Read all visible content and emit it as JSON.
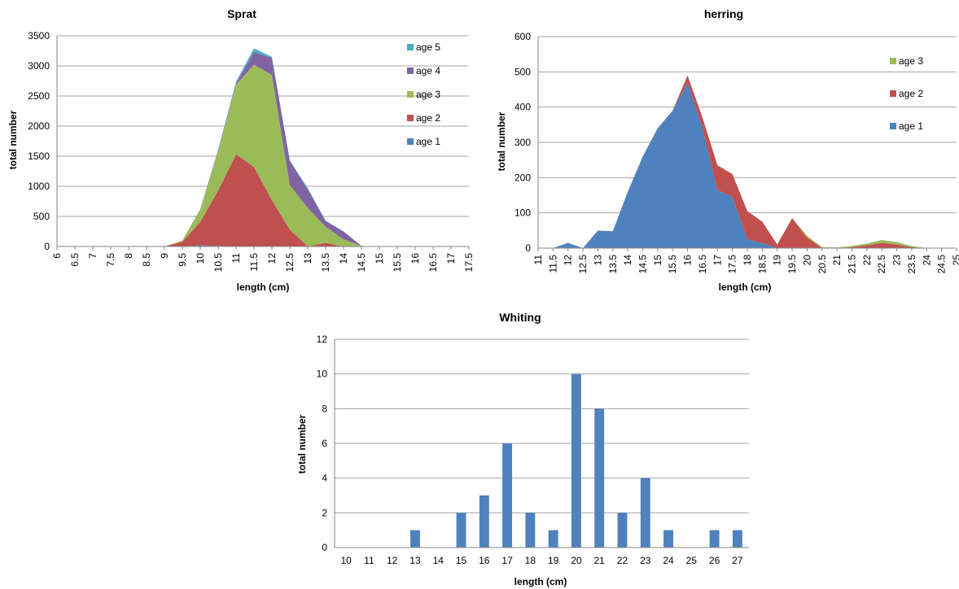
{
  "chart_data": [
    {
      "id": "sprat",
      "type": "area",
      "stacked": true,
      "title": "Sprat",
      "xlabel": "length (cm)",
      "ylabel": "total number",
      "ylim": [
        0,
        3500
      ],
      "yticks": [
        0,
        500,
        1000,
        1500,
        2000,
        2500,
        3000,
        3500
      ],
      "grid": true,
      "legend_position": "right",
      "x": [
        6,
        6.5,
        7,
        7.5,
        8,
        8.5,
        9,
        9.5,
        10,
        10.5,
        11,
        11.5,
        12,
        12.5,
        13,
        13.5,
        14,
        14.5,
        15,
        15.5,
        16,
        16.5,
        17,
        17.5
      ],
      "x_tick_labels": [
        "6",
        "6.5",
        "7",
        "7.5",
        "8",
        "8.5",
        "9",
        "9.5",
        "10",
        "10.5",
        "11",
        "11.5",
        "12",
        "12.5",
        "13",
        "13.5",
        "14",
        "14.5",
        "15",
        "15.5",
        "16",
        "16.5",
        "17",
        "17.5"
      ],
      "series": [
        {
          "name": "age 1",
          "color": "#4F81BD",
          "values": [
            0,
            0,
            0,
            0,
            0,
            0,
            0,
            0,
            20,
            10,
            0,
            0,
            0,
            0,
            0,
            0,
            0,
            0,
            0,
            0,
            0,
            0,
            0,
            0
          ]
        },
        {
          "name": "age 2",
          "color": "#C0504D",
          "values": [
            0,
            0,
            0,
            0,
            0,
            0,
            0,
            80,
            390,
            920,
            1530,
            1320,
            770,
            280,
            0,
            60,
            0,
            0,
            0,
            0,
            0,
            0,
            0,
            0
          ]
        },
        {
          "name": "age 3",
          "color": "#9BBB59",
          "values": [
            0,
            0,
            0,
            0,
            0,
            0,
            0,
            20,
            200,
            650,
            1160,
            1700,
            2080,
            740,
            640,
            270,
            120,
            10,
            0,
            0,
            0,
            0,
            0,
            0
          ]
        },
        {
          "name": "age 4",
          "color": "#8064A2",
          "values": [
            0,
            0,
            0,
            0,
            0,
            0,
            0,
            0,
            10,
            20,
            20,
            210,
            280,
            400,
            310,
            90,
            130,
            0,
            0,
            0,
            0,
            0,
            0,
            0
          ]
        },
        {
          "name": "age 5",
          "color": "#4BACC6",
          "values": [
            0,
            0,
            0,
            0,
            0,
            0,
            0,
            0,
            0,
            10,
            30,
            60,
            20,
            10,
            20,
            10,
            0,
            0,
            0,
            0,
            0,
            0,
            0,
            0
          ]
        }
      ]
    },
    {
      "id": "herring",
      "type": "area",
      "stacked": true,
      "title": "herring",
      "xlabel": "length (cm)",
      "ylabel": "total number",
      "ylim": [
        0,
        600
      ],
      "yticks": [
        0,
        100,
        200,
        300,
        400,
        500,
        600
      ],
      "grid": true,
      "legend_position": "right",
      "x": [
        11,
        11.5,
        12,
        12.5,
        13,
        13.5,
        14,
        14.5,
        15,
        15.5,
        16,
        16.5,
        17,
        17.5,
        18,
        18.5,
        19,
        19.5,
        20,
        20.5,
        21,
        21.5,
        22,
        22.5,
        23,
        23.5,
        24,
        24.5,
        25
      ],
      "x_tick_labels": [
        "11",
        "11.5",
        "12",
        "12.5",
        "13",
        "13.5",
        "14",
        "14.5",
        "15",
        "15.5",
        "16",
        "16.5",
        "17",
        "17.5",
        "18",
        "18.5",
        "19",
        "19.5",
        "20",
        "20.5",
        "21",
        "21.5",
        "22",
        "22.5",
        "23",
        "23.5",
        "24",
        "24.5",
        "25"
      ],
      "series": [
        {
          "name": "age 1",
          "color": "#4F81BD",
          "values": [
            0,
            0,
            15,
            0,
            50,
            48,
            160,
            260,
            340,
            390,
            470,
            340,
            165,
            145,
            25,
            15,
            0,
            0,
            0,
            0,
            0,
            0,
            0,
            0,
            0,
            0,
            0,
            0,
            0
          ]
        },
        {
          "name": "age 2",
          "color": "#C0504D",
          "values": [
            0,
            0,
            0,
            0,
            0,
            0,
            0,
            0,
            0,
            0,
            20,
            30,
            70,
            65,
            80,
            60,
            10,
            85,
            30,
            0,
            0,
            3,
            8,
            15,
            10,
            3,
            0,
            0,
            0
          ]
        },
        {
          "name": "age 3",
          "color": "#9BBB59",
          "values": [
            0,
            0,
            0,
            0,
            0,
            0,
            0,
            0,
            0,
            0,
            0,
            0,
            0,
            0,
            0,
            0,
            0,
            0,
            5,
            3,
            2,
            3,
            5,
            8,
            7,
            3,
            0,
            0,
            0
          ]
        }
      ]
    },
    {
      "id": "whiting",
      "type": "bar",
      "title": "Whiting",
      "xlabel": "length (cm)",
      "ylabel": "total number",
      "ylim": [
        0,
        12
      ],
      "yticks": [
        0,
        2,
        4,
        6,
        8,
        10,
        12
      ],
      "grid": true,
      "color": "#4F81BD",
      "categories": [
        "10",
        "11",
        "12",
        "13",
        "14",
        "15",
        "16",
        "17",
        "18",
        "19",
        "20",
        "21",
        "22",
        "23",
        "24",
        "25",
        "26",
        "27"
      ],
      "values": [
        0,
        0,
        0,
        1,
        0,
        2,
        3,
        6,
        2,
        1,
        10,
        8,
        2,
        4,
        1,
        0,
        1,
        1
      ]
    }
  ]
}
